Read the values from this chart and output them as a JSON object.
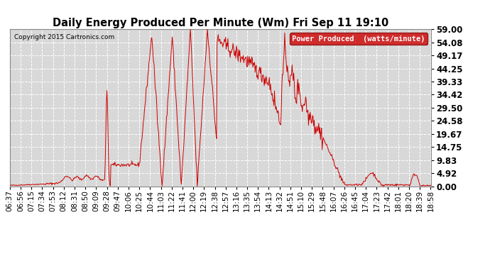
{
  "title": "Daily Energy Produced Per Minute (Wm) Fri Sep 11 19:10",
  "copyright": "Copyright 2015 Cartronics.com",
  "legend_label": "Power Produced  (watts/minute)",
  "legend_bg": "#cc0000",
  "legend_fg": "#ffffff",
  "bg_color": "#ffffff",
  "plot_bg": "#d8d8d8",
  "grid_color": "#ffffff",
  "line_color": "#cc0000",
  "title_fontsize": 11,
  "tick_fontsize": 8,
  "ylim": [
    0,
    59.0
  ],
  "yticks": [
    0.0,
    4.92,
    9.83,
    14.75,
    19.67,
    24.58,
    29.5,
    34.42,
    39.33,
    44.25,
    49.17,
    54.08,
    59.0
  ],
  "ytick_labels": [
    "0.00",
    "4.92",
    "9.83",
    "14.75",
    "19.67",
    "24.58",
    "29.50",
    "34.42",
    "39.33",
    "44.25",
    "49.17",
    "54.08",
    "59.00"
  ]
}
